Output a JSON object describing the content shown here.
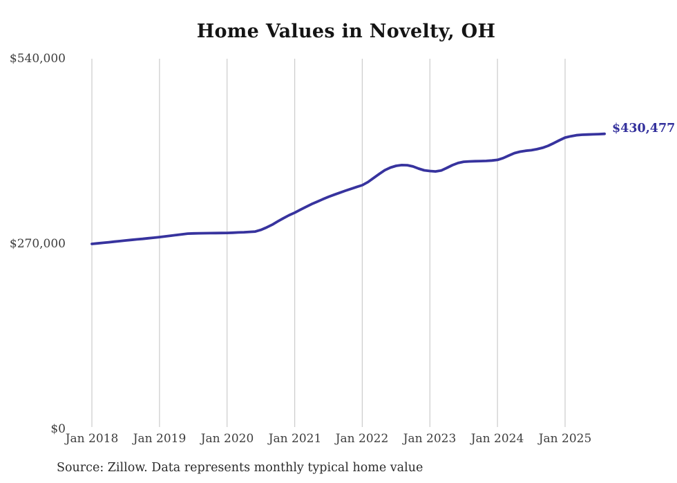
{
  "title": "Home Values in Novelty, OH",
  "end_value_label": "$430,477",
  "source_note": "Source: Zillow. Data represents monthly typical home value",
  "y_axis": {
    "labels": [
      "$540,000",
      "$270,000",
      "$0"
    ]
  },
  "x_axis": {
    "labels": [
      "Jan 2018",
      "Jan 2019",
      "Jan 2020",
      "Jan 2021",
      "Jan 2022",
      "Jan 2023",
      "Jan 2024",
      "Jan 2025"
    ]
  },
  "colors": {
    "line": "#37339e",
    "grid": "#cbcbcb",
    "value_label": "#33309c",
    "axis_text": "#3d3d3d",
    "title_text": "#141414",
    "source_text": "#2b2b2b",
    "background": "#ffffff"
  },
  "chart_data": {
    "type": "line",
    "title": "Home Values in Novelty, OH",
    "x_start": "Jan 2018",
    "x_end": "Aug 2025",
    "frequency": "monthly",
    "x_tick_labels": [
      "Jan 2018",
      "Jan 2019",
      "Jan 2020",
      "Jan 2021",
      "Jan 2022",
      "Jan 2023",
      "Jan 2024",
      "Jan 2025"
    ],
    "y_tick_labels": [
      "$0",
      "$270,000",
      "$540,000"
    ],
    "ylim": [
      0,
      540000
    ],
    "unit": "USD",
    "grid": "vertical-only",
    "legend_position": "none",
    "last_value": 430477,
    "last_value_label": "$430,477",
    "series": [
      {
        "name": "Monthly typical home value",
        "values": [
          270000,
          270800,
          271600,
          272400,
          273300,
          274100,
          275000,
          275800,
          276600,
          277400,
          278300,
          279100,
          280000,
          281000,
          282000,
          283000,
          284000,
          285000,
          285300,
          285500,
          285600,
          285700,
          285800,
          285900,
          286000,
          286300,
          286700,
          287000,
          287500,
          288000,
          290500,
          294000,
          298000,
          302800,
          307500,
          311800,
          315500,
          319800,
          324000,
          328000,
          331600,
          335200,
          338600,
          341700,
          344700,
          347600,
          350300,
          353000,
          355600,
          360200,
          366000,
          372000,
          377500,
          381300,
          383800,
          385000,
          384800,
          382900,
          379800,
          377300,
          376300,
          375700,
          377000,
          380800,
          384900,
          388000,
          389800,
          390300,
          390600,
          390800,
          391000,
          391600,
          392500,
          395100,
          398900,
          402400,
          404500,
          405800,
          406600,
          408100,
          410100,
          413100,
          417000,
          421100,
          425000,
          427000,
          428500,
          429200,
          429500,
          429800,
          430100,
          430477
        ]
      }
    ]
  }
}
